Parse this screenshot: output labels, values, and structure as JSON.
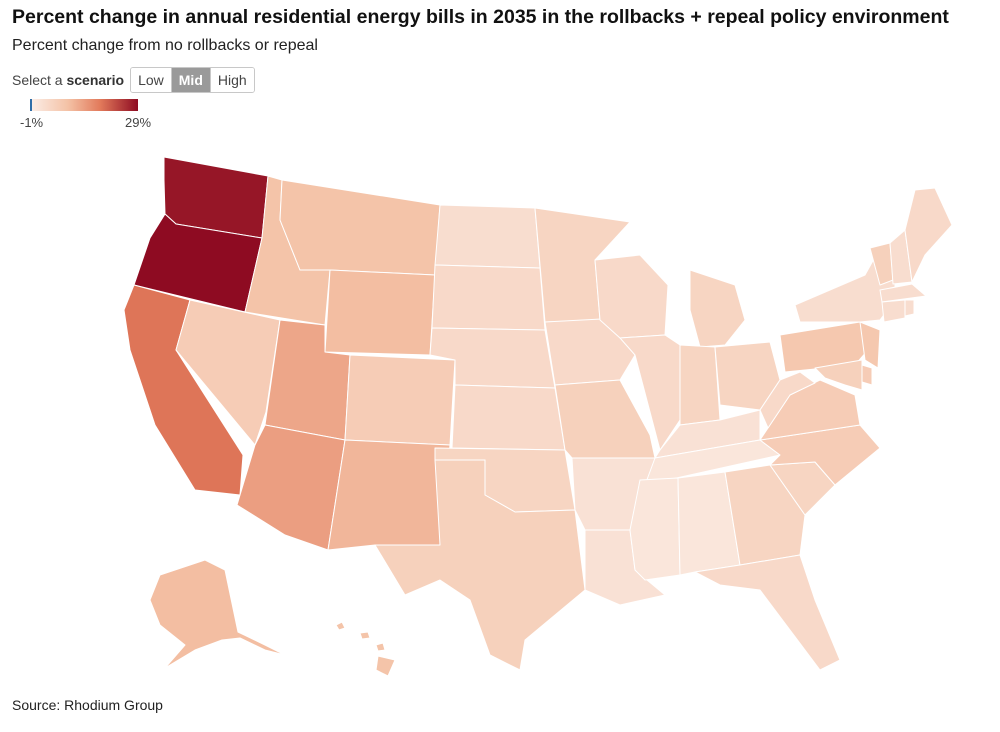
{
  "header": {
    "title": "Percent change in annual residential energy bills in 2035 in the rollbacks + repeal policy environment",
    "subtitle": "Percent change from no rollbacks or repeal"
  },
  "scenario": {
    "prompt_plain": "Select a ",
    "prompt_bold": "scenario",
    "options": [
      "Low",
      "Mid",
      "High"
    ],
    "selected": "Mid"
  },
  "legend": {
    "min_label": "-1%",
    "max_label": "29%",
    "min": -1,
    "max": 29
  },
  "colors": {
    "scale_low": "#fbeee8",
    "scale_mid": "#f4c2a6",
    "scale_high": "#8e0b22",
    "negative": "#2f6ea8",
    "border": "#ffffff"
  },
  "map_data": {
    "metric": "percent change in annual residential energy bills, 2035",
    "regions": [
      {
        "code": "WA",
        "value": 28
      },
      {
        "code": "OR",
        "value": 29
      },
      {
        "code": "CA",
        "value": 19
      },
      {
        "code": "ID",
        "value": 9
      },
      {
        "code": "NV",
        "value": 7
      },
      {
        "code": "MT",
        "value": 9
      },
      {
        "code": "WY",
        "value": 10
      },
      {
        "code": "UT",
        "value": 13
      },
      {
        "code": "AZ",
        "value": 14
      },
      {
        "code": "CO",
        "value": 7
      },
      {
        "code": "NM",
        "value": 11
      },
      {
        "code": "ND",
        "value": 3
      },
      {
        "code": "SD",
        "value": 4
      },
      {
        "code": "NE",
        "value": 4
      },
      {
        "code": "KS",
        "value": 4
      },
      {
        "code": "OK",
        "value": 5
      },
      {
        "code": "TX",
        "value": 6
      },
      {
        "code": "MN",
        "value": 5
      },
      {
        "code": "IA",
        "value": 4
      },
      {
        "code": "MO",
        "value": 6
      },
      {
        "code": "AR",
        "value": 2
      },
      {
        "code": "LA",
        "value": 2
      },
      {
        "code": "WI",
        "value": 4
      },
      {
        "code": "IL",
        "value": 4
      },
      {
        "code": "MI",
        "value": 5
      },
      {
        "code": "IN",
        "value": 5
      },
      {
        "code": "OH",
        "value": 5
      },
      {
        "code": "KY",
        "value": 2
      },
      {
        "code": "TN",
        "value": 1
      },
      {
        "code": "MS",
        "value": 1
      },
      {
        "code": "AL",
        "value": 1
      },
      {
        "code": "GA",
        "value": 5
      },
      {
        "code": "FL",
        "value": 4
      },
      {
        "code": "SC",
        "value": 5
      },
      {
        "code": "NC",
        "value": 7
      },
      {
        "code": "VA",
        "value": 7
      },
      {
        "code": "WV",
        "value": 4
      },
      {
        "code": "PA",
        "value": 8
      },
      {
        "code": "NY",
        "value": 3
      },
      {
        "code": "VT",
        "value": 6
      },
      {
        "code": "NH",
        "value": 3
      },
      {
        "code": "ME",
        "value": 4
      },
      {
        "code": "MA",
        "value": 3
      },
      {
        "code": "CT",
        "value": 3
      },
      {
        "code": "RI",
        "value": 3
      },
      {
        "code": "NJ",
        "value": 8
      },
      {
        "code": "DE",
        "value": 7
      },
      {
        "code": "MD",
        "value": 6
      },
      {
        "code": "AK",
        "value": 10
      },
      {
        "code": "HI",
        "value": 9
      }
    ]
  },
  "footer": {
    "source": "Source: Rhodium Group"
  }
}
